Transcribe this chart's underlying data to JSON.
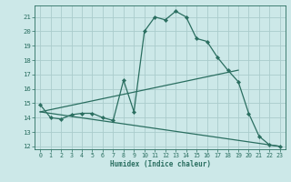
{
  "bg_color": "#cce8e8",
  "grid_color": "#aacccc",
  "line_color": "#2a6e60",
  "xlabel": "Humidex (Indice chaleur)",
  "xlim": [
    -0.5,
    23.5
  ],
  "ylim": [
    11.8,
    21.8
  ],
  "yticks": [
    12,
    13,
    14,
    15,
    16,
    17,
    18,
    19,
    20,
    21
  ],
  "xticks": [
    0,
    1,
    2,
    3,
    4,
    5,
    6,
    7,
    8,
    9,
    10,
    11,
    12,
    13,
    14,
    15,
    16,
    17,
    18,
    19,
    20,
    21,
    22,
    23
  ],
  "line1_x": [
    0,
    1,
    2,
    3,
    4,
    5,
    6,
    7,
    8,
    9,
    10,
    11,
    12,
    13,
    14,
    15,
    16,
    17,
    18,
    19,
    20,
    21,
    22,
    23
  ],
  "line1_y": [
    14.9,
    14.0,
    13.9,
    14.2,
    14.3,
    14.3,
    14.0,
    13.8,
    16.6,
    14.4,
    20.0,
    21.0,
    20.8,
    21.4,
    21.0,
    19.5,
    19.3,
    18.2,
    17.3,
    16.5,
    14.3,
    12.7,
    12.1,
    12.0
  ],
  "line2_x": [
    0,
    19
  ],
  "line2_y": [
    14.4,
    17.3
  ],
  "line3_x": [
    0,
    23
  ],
  "line3_y": [
    14.4,
    12.0
  ],
  "marker_x": [
    0,
    1,
    2,
    3,
    4,
    5,
    6,
    7,
    8,
    9,
    10,
    11,
    12,
    13,
    14,
    15,
    16,
    17,
    18,
    19,
    20,
    21,
    22,
    23
  ],
  "marker_y": [
    14.9,
    14.0,
    13.9,
    14.2,
    14.3,
    14.3,
    14.0,
    13.8,
    16.6,
    14.4,
    20.0,
    21.0,
    20.8,
    21.4,
    21.0,
    19.5,
    19.3,
    18.2,
    17.3,
    16.5,
    14.3,
    12.7,
    12.1,
    12.0
  ]
}
